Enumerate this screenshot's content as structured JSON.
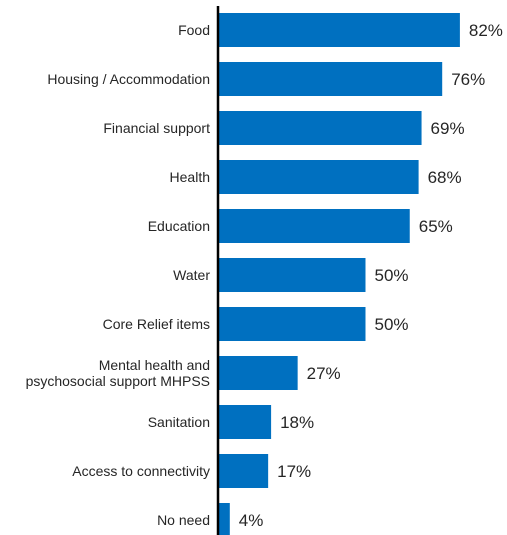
{
  "chart_data": {
    "type": "bar",
    "orientation": "horizontal",
    "categories": [
      "Food",
      "Housing / Accommodation",
      "Financial support",
      "Health",
      "Education",
      "Water",
      "Core Relief items",
      "Mental health and psychosocial support MHPSS",
      "Sanitation",
      "Access to connectivity",
      "No need"
    ],
    "category_lines": [
      [
        "Food"
      ],
      [
        "Housing / Accommodation"
      ],
      [
        "Financial support"
      ],
      [
        "Health"
      ],
      [
        "Education"
      ],
      [
        "Water"
      ],
      [
        "Core Relief items"
      ],
      [
        "Mental health and",
        "psychosocial support MHPSS"
      ],
      [
        "Sanitation"
      ],
      [
        "Access to connectivity"
      ],
      [
        "No need"
      ]
    ],
    "values": [
      82,
      76,
      69,
      68,
      65,
      50,
      50,
      27,
      18,
      17,
      4
    ],
    "value_labels": [
      "82%",
      "76%",
      "69%",
      "68%",
      "65%",
      "50%",
      "50%",
      "27%",
      "18%",
      "17%",
      "4%"
    ],
    "unit": "%",
    "title": "",
    "xlabel": "",
    "ylabel": "",
    "xlim": [
      0,
      100
    ],
    "grid": false,
    "legend": "none",
    "bar_color": "#0070C0",
    "axis_color": "#000000"
  }
}
